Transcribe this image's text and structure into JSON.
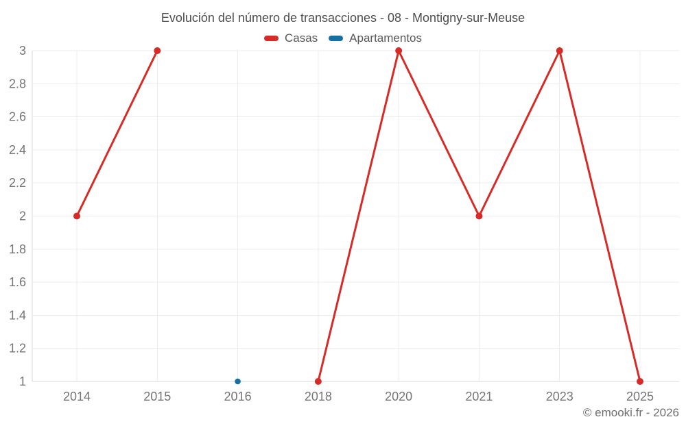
{
  "title": "Evolución del número de transacciones - 08 - Montigny-sur-Meuse",
  "watermark": "© emooki.fr - 2026",
  "colors": {
    "grid": "#ececec",
    "axis": "#d9d9d9",
    "title_text": "#4d4d4d",
    "tick_text": "#757575",
    "legend_text": "#58585a",
    "watermark_text": "#6e6e6e"
  },
  "chart_data": {
    "type": "line",
    "title": "Evolución del número de transacciones - 08 - Montigny-sur-Meuse",
    "xlabel": "",
    "ylabel": "",
    "categories": [
      "2014",
      "2015",
      "2016",
      "2018",
      "2020",
      "2021",
      "2023",
      "2025"
    ],
    "series": [
      {
        "name": "Casas",
        "color": "#d62b26",
        "marker_radius": 5,
        "values": [
          2,
          3,
          null,
          1,
          3,
          2,
          3,
          1
        ]
      },
      {
        "name": "Apartamentos",
        "color": "#1670a3",
        "marker_radius": 4.3,
        "values": [
          null,
          null,
          1,
          null,
          null,
          null,
          null,
          null
        ]
      }
    ],
    "ylim": [
      1,
      3
    ],
    "yticks": [
      1,
      1.2,
      1.4,
      1.6,
      1.8,
      2,
      2.2,
      2.4,
      2.6,
      2.8,
      3
    ],
    "grid": true,
    "legend_position": "top"
  }
}
